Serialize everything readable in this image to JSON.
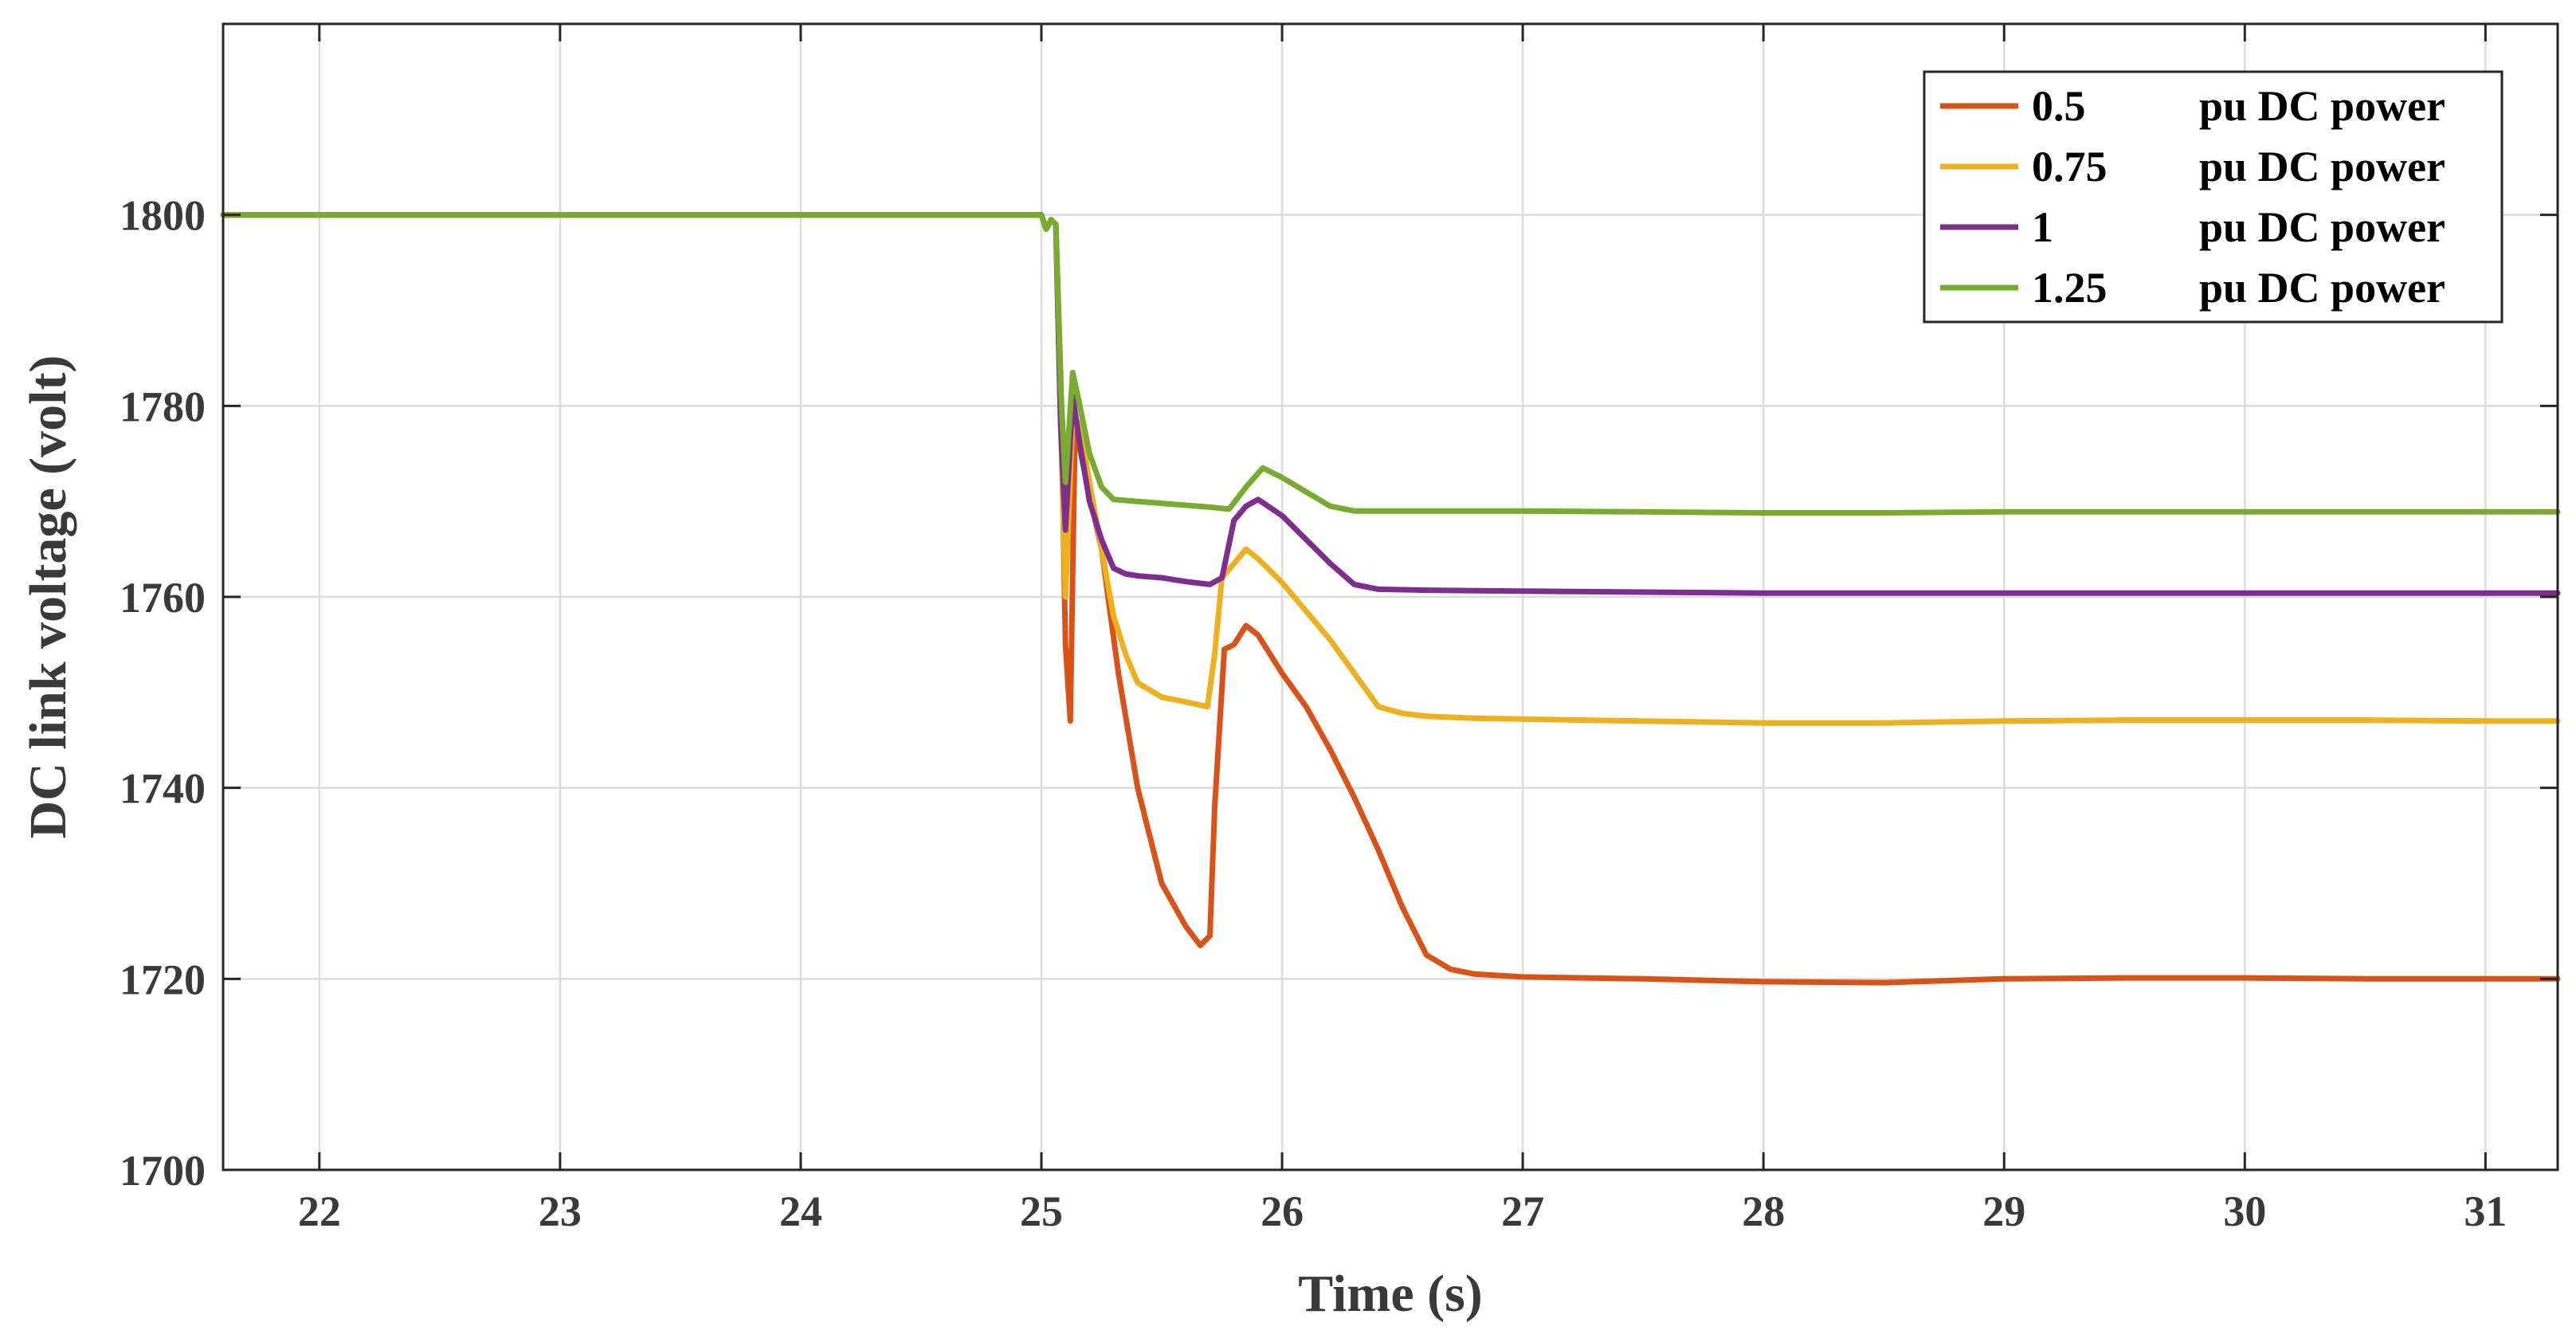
{
  "chart_data": {
    "type": "line",
    "title": "",
    "xlabel": "Time (s)",
    "ylabel": "DC link voltage (volt)",
    "xlim": [
      21.6,
      31.3
    ],
    "ylim": [
      1700,
      1820
    ],
    "xticks": [
      22,
      23,
      24,
      25,
      26,
      27,
      28,
      29,
      30,
      31
    ],
    "yticks": [
      1700,
      1720,
      1740,
      1760,
      1780,
      1800
    ],
    "xtick_labels": [
      "22",
      "23",
      "24",
      "25",
      "26",
      "27",
      "28",
      "29",
      "30",
      "31"
    ],
    "ytick_labels": [
      "1700",
      "1720",
      "1740",
      "1760",
      "1780",
      "1800"
    ],
    "grid": true,
    "legend_position": "top-right",
    "series": [
      {
        "name": "0.5",
        "unit_label": "pu DC power",
        "color": "#D95319",
        "x": [
          21.6,
          25.0,
          25.02,
          25.04,
          25.06,
          25.08,
          25.1,
          25.12,
          25.14,
          25.18,
          25.25,
          25.32,
          25.4,
          25.5,
          25.6,
          25.66,
          25.7,
          25.72,
          25.76,
          25.8,
          25.85,
          25.9,
          26.0,
          26.1,
          26.2,
          26.3,
          26.4,
          26.5,
          26.6,
          26.7,
          26.8,
          27.0,
          27.5,
          28.0,
          28.5,
          29.0,
          29.5,
          30.0,
          30.5,
          31.0,
          31.3
        ],
        "y": [
          1800,
          1800,
          1798.5,
          1799.5,
          1799,
          1783,
          1755,
          1747,
          1778,
          1773,
          1765,
          1752,
          1740,
          1730,
          1725.5,
          1723.5,
          1724.5,
          1738,
          1754.5,
          1755,
          1757,
          1756,
          1752,
          1748.5,
          1744,
          1739,
          1733.5,
          1727.5,
          1722.5,
          1721,
          1720.5,
          1720.2,
          1720,
          1719.7,
          1719.6,
          1720,
          1720.1,
          1720.1,
          1720,
          1720,
          1720
        ]
      },
      {
        "name": "0.75",
        "unit_label": "pu DC power",
        "color": "#EDB120",
        "x": [
          21.6,
          25.0,
          25.02,
          25.04,
          25.06,
          25.08,
          25.1,
          25.13,
          25.16,
          25.2,
          25.25,
          25.3,
          25.35,
          25.4,
          25.5,
          25.6,
          25.69,
          25.72,
          25.75,
          25.8,
          25.85,
          25.9,
          26.0,
          26.1,
          26.2,
          26.3,
          26.4,
          26.5,
          26.6,
          26.8,
          27.0,
          27.5,
          28.0,
          28.5,
          29.0,
          29.5,
          30.0,
          30.5,
          31.0,
          31.3
        ],
        "y": [
          1800,
          1800,
          1798.5,
          1799.5,
          1799,
          1778,
          1760,
          1779,
          1778,
          1772,
          1765,
          1758,
          1754,
          1751,
          1749.5,
          1749,
          1748.5,
          1754,
          1762,
          1763.5,
          1765,
          1764,
          1761.5,
          1758.5,
          1755.5,
          1752,
          1748.5,
          1747.8,
          1747.5,
          1747.3,
          1747.2,
          1747,
          1746.8,
          1746.8,
          1747,
          1747.1,
          1747.1,
          1747.1,
          1747,
          1747
        ]
      },
      {
        "name": "1",
        "unit_label": "pu DC power",
        "color": "#7E2F8E",
        "x": [
          21.6,
          25.0,
          25.02,
          25.04,
          25.06,
          25.08,
          25.1,
          25.13,
          25.16,
          25.2,
          25.25,
          25.3,
          25.35,
          25.4,
          25.5,
          25.6,
          25.7,
          25.75,
          25.8,
          25.85,
          25.9,
          26.0,
          26.1,
          26.2,
          26.3,
          26.4,
          26.6,
          27.0,
          27.5,
          28.0,
          28.5,
          29.0,
          29.5,
          30.0,
          30.5,
          31.0,
          31.3
        ],
        "y": [
          1800,
          1800,
          1798.5,
          1799.5,
          1799,
          1778,
          1767,
          1781,
          1776,
          1770,
          1766,
          1763,
          1762.4,
          1762.2,
          1762,
          1761.6,
          1761.3,
          1762,
          1768,
          1769.5,
          1770.2,
          1768.5,
          1766,
          1763.5,
          1761.3,
          1760.8,
          1760.7,
          1760.6,
          1760.5,
          1760.4,
          1760.4,
          1760.4,
          1760.4,
          1760.4,
          1760.4,
          1760.4,
          1760.4
        ]
      },
      {
        "name": "1.25",
        "unit_label": "pu DC power",
        "color": "#77AC30",
        "x": [
          21.6,
          25.0,
          25.02,
          25.04,
          25.06,
          25.08,
          25.1,
          25.13,
          25.16,
          25.2,
          25.25,
          25.3,
          25.4,
          25.5,
          25.6,
          25.7,
          25.78,
          25.85,
          25.92,
          26.0,
          26.1,
          26.2,
          26.3,
          26.4,
          26.6,
          27.0,
          27.5,
          28.0,
          28.5,
          29.0,
          29.5,
          30.0,
          30.5,
          31.0,
          31.3
        ],
        "y": [
          1800,
          1800,
          1798.5,
          1799.5,
          1799,
          1782,
          1772,
          1783.5,
          1780,
          1775,
          1771.5,
          1770.2,
          1770,
          1769.8,
          1769.6,
          1769.4,
          1769.2,
          1771.5,
          1773.5,
          1772.5,
          1771,
          1769.5,
          1769,
          1769,
          1769,
          1769,
          1768.9,
          1768.8,
          1768.8,
          1768.9,
          1768.9,
          1768.9,
          1768.9,
          1768.9,
          1768.9
        ]
      }
    ]
  }
}
